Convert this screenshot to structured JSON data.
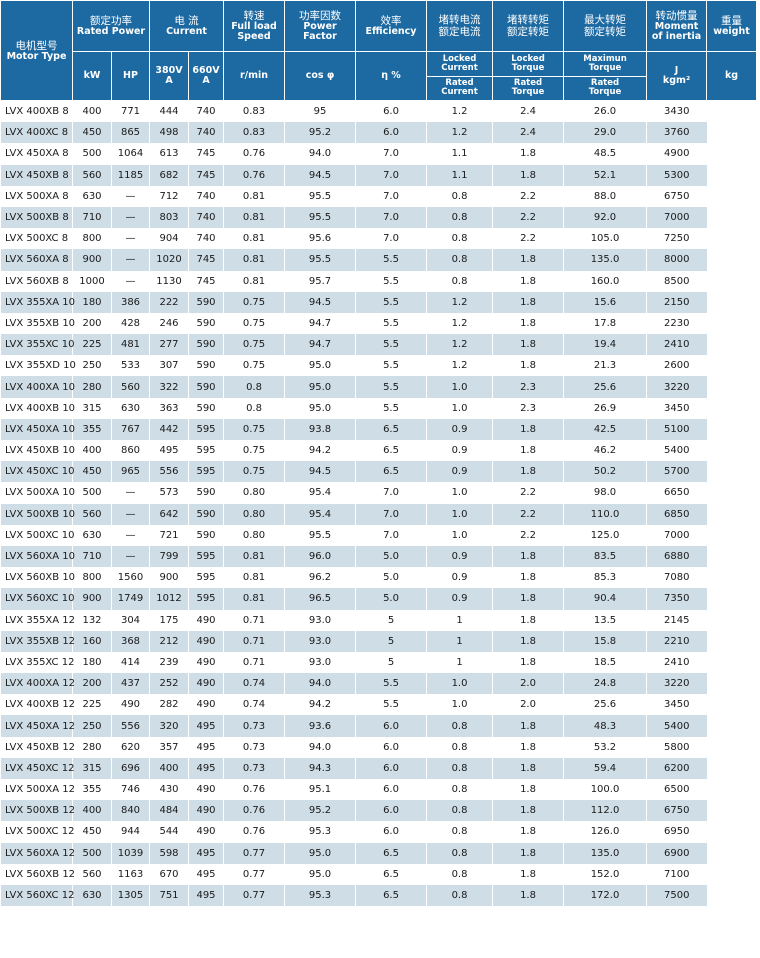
{
  "header": {
    "model": {
      "zh": "电机型号",
      "en": "Motor Type"
    },
    "power": {
      "zh": "额定功率",
      "en": "Rated Power",
      "kw": "kW",
      "hp": "HP"
    },
    "current": {
      "zh": "电 流",
      "en": "Current",
      "v380": "380V",
      "v660": "660V",
      "unit": "A"
    },
    "speed": {
      "zh": "转速",
      "en1": "Full load",
      "en2": "Speed",
      "unit": "r/min"
    },
    "pf": {
      "zh": "功率因数",
      "en1": "Power",
      "en2": "Factor",
      "unit": "cos φ"
    },
    "eff": {
      "zh": "效率",
      "en": "Efficiency",
      "unit": "η %"
    },
    "lcurrent": {
      "zh1": "堵转电流",
      "zh2": "额定电流",
      "t1": "Locked",
      "t2": "Current",
      "b1": "Rated",
      "b2": "Current"
    },
    "ltorque": {
      "zh1": "堵转转矩",
      "zh2": "额定转矩",
      "t1": "Locked",
      "t2": "Torque",
      "b1": "Rated",
      "b2": "Torque"
    },
    "mtorque": {
      "zh1": "最大转矩",
      "zh2": "额定转矩",
      "t1": "Maximun",
      "t2": "Torque",
      "b1": "Rated",
      "b2": "Torque"
    },
    "inertia": {
      "zh": "转动惯量",
      "en1": "Moment",
      "en2": "of inertia",
      "u1": "J",
      "u2": "kgm²"
    },
    "weight": {
      "zh": "重量",
      "en": "weight",
      "unit": "kg"
    }
  },
  "rows": [
    [
      "LVX 400XB 8",
      "400",
      "771",
      "444",
      "740",
      "0.83",
      "95",
      "6.0",
      "1.2",
      "2.4",
      "26.0",
      "3430"
    ],
    [
      "LVX 400XC 8",
      "450",
      "865",
      "498",
      "740",
      "0.83",
      "95.2",
      "6.0",
      "1.2",
      "2.4",
      "29.0",
      "3760"
    ],
    [
      "LVX 450XA 8",
      "500",
      "1064",
      "613",
      "745",
      "0.76",
      "94.0",
      "7.0",
      "1.1",
      "1.8",
      "48.5",
      "4900"
    ],
    [
      "LVX 450XB 8",
      "560",
      "1185",
      "682",
      "745",
      "0.76",
      "94.5",
      "7.0",
      "1.1",
      "1.8",
      "52.1",
      "5300"
    ],
    [
      "LVX 500XA 8",
      "630",
      "—",
      "712",
      "740",
      "0.81",
      "95.5",
      "7.0",
      "0.8",
      "2.2",
      "88.0",
      "6750"
    ],
    [
      "LVX 500XB 8",
      "710",
      "—",
      "803",
      "740",
      "0.81",
      "95.5",
      "7.0",
      "0.8",
      "2.2",
      "92.0",
      "7000"
    ],
    [
      "LVX 500XC 8",
      "800",
      "—",
      "904",
      "740",
      "0.81",
      "95.6",
      "7.0",
      "0.8",
      "2.2",
      "105.0",
      "7250"
    ],
    [
      "LVX 560XA 8",
      "900",
      "—",
      "1020",
      "745",
      "0.81",
      "95.5",
      "5.5",
      "0.8",
      "1.8",
      "135.0",
      "8000"
    ],
    [
      "LVX 560XB 8",
      "1000",
      "—",
      "1130",
      "745",
      "0.81",
      "95.7",
      "5.5",
      "0.8",
      "1.8",
      "160.0",
      "8500"
    ],
    [
      "LVX 355XA 10",
      "180",
      "386",
      "222",
      "590",
      "0.75",
      "94.5",
      "5.5",
      "1.2",
      "1.8",
      "15.6",
      "2150"
    ],
    [
      "LVX 355XB 10",
      "200",
      "428",
      "246",
      "590",
      "0.75",
      "94.7",
      "5.5",
      "1.2",
      "1.8",
      "17.8",
      "2230"
    ],
    [
      "LVX 355XC 10",
      "225",
      "481",
      "277",
      "590",
      "0.75",
      "94.7",
      "5.5",
      "1.2",
      "1.8",
      "19.4",
      "2410"
    ],
    [
      "LVX 355XD  10",
      "250",
      "533",
      "307",
      "590",
      "0.75",
      "95.0",
      "5.5",
      "1.2",
      "1.8",
      "21.3",
      "2600"
    ],
    [
      "LVX 400XA 10",
      "280",
      "560",
      "322",
      "590",
      "0.8",
      "95.0",
      "5.5",
      "1.0",
      "2.3",
      "25.6",
      "3220"
    ],
    [
      "LVX 400XB 10",
      "315",
      "630",
      "363",
      "590",
      "0.8",
      "95.0",
      "5.5",
      "1.0",
      "2.3",
      "26.9",
      "3450"
    ],
    [
      "LVX 450XA 10",
      "355",
      "767",
      "442",
      "595",
      "0.75",
      "93.8",
      "6.5",
      "0.9",
      "1.8",
      "42.5",
      "5100"
    ],
    [
      "LVX 450XB 10",
      "400",
      "860",
      "495",
      "595",
      "0.75",
      "94.2",
      "6.5",
      "0.9",
      "1.8",
      "46.2",
      "5400"
    ],
    [
      "LVX 450XC 10",
      "450",
      "965",
      "556",
      "595",
      "0.75",
      "94.5",
      "6.5",
      "0.9",
      "1.8",
      "50.2",
      "5700"
    ],
    [
      "LVX 500XA 10",
      "500",
      "—",
      "573",
      "590",
      "0.80",
      "95.4",
      "7.0",
      "1.0",
      "2.2",
      "98.0",
      "6650"
    ],
    [
      "LVX 500XB 10",
      "560",
      "—",
      "642",
      "590",
      "0.80",
      "95.4",
      "7.0",
      "1.0",
      "2.2",
      "110.0",
      "6850"
    ],
    [
      "LVX 500XC 10",
      "630",
      "—",
      "721",
      "590",
      "0.80",
      "95.5",
      "7.0",
      "1.0",
      "2.2",
      "125.0",
      "7000"
    ],
    [
      "LVX 560XA 10",
      "710",
      "—",
      "799",
      "595",
      "0.81",
      "96.0",
      "5.0",
      "0.9",
      "1.8",
      "83.5",
      "6880"
    ],
    [
      "LVX 560XB 10",
      "800",
      "1560",
      "900",
      "595",
      "0.81",
      "96.2",
      "5.0",
      "0.9",
      "1.8",
      "85.3",
      "7080"
    ],
    [
      "LVX 560XC 10",
      "900",
      "1749",
      "1012",
      "595",
      "0.81",
      "96.5",
      "5.0",
      "0.9",
      "1.8",
      "90.4",
      "7350"
    ],
    [
      "LVX 355XA 12",
      "132",
      "304",
      "175",
      "490",
      "0.71",
      "93.0",
      "5",
      "1",
      "1.8",
      "13.5",
      "2145"
    ],
    [
      "LVX 355XB 12",
      "160",
      "368",
      "212",
      "490",
      "0.71",
      "93.0",
      "5",
      "1",
      "1.8",
      "15.8",
      "2210"
    ],
    [
      "LVX 355XC 12",
      "180",
      "414",
      "239",
      "490",
      "0.71",
      "93.0",
      "5",
      "1",
      "1.8",
      "18.5",
      "2410"
    ],
    [
      "LVX 400XA 12",
      "200",
      "437",
      "252",
      "490",
      "0.74",
      "94.0",
      "5.5",
      "1.0",
      "2.0",
      "24.8",
      "3220"
    ],
    [
      "LVX 400XB 12",
      "225",
      "490",
      "282",
      "490",
      "0.74",
      "94.2",
      "5.5",
      "1.0",
      "2.0",
      "25.6",
      "3450"
    ],
    [
      "LVX 450XA 12",
      "250",
      "556",
      "320",
      "495",
      "0.73",
      "93.6",
      "6.0",
      "0.8",
      "1.8",
      "48.3",
      "5400"
    ],
    [
      "LVX 450XB 12",
      "280",
      "620",
      "357",
      "495",
      "0.73",
      "94.0",
      "6.0",
      "0.8",
      "1.8",
      "53.2",
      "5800"
    ],
    [
      "LVX 450XC 12",
      "315",
      "696",
      "400",
      "495",
      "0.73",
      "94.3",
      "6.0",
      "0.8",
      "1.8",
      "59.4",
      "6200"
    ],
    [
      "LVX 500XA 12",
      "355",
      "746",
      "430",
      "490",
      "0.76",
      "95.1",
      "6.0",
      "0.8",
      "1.8",
      "100.0",
      "6500"
    ],
    [
      "LVX 500XB 12",
      "400",
      "840",
      "484",
      "490",
      "0.76",
      "95.2",
      "6.0",
      "0.8",
      "1.8",
      "112.0",
      "6750"
    ],
    [
      "LVX 500XC 12",
      "450",
      "944",
      "544",
      "490",
      "0.76",
      "95.3",
      "6.0",
      "0.8",
      "1.8",
      "126.0",
      "6950"
    ],
    [
      "LVX 560XA 12",
      "500",
      "1039",
      "598",
      "495",
      "0.77",
      "95.0",
      "6.5",
      "0.8",
      "1.8",
      "135.0",
      "6900"
    ],
    [
      "LVX 560XB 12",
      "560",
      "1163",
      "670",
      "495",
      "0.77",
      "95.0",
      "6.5",
      "0.8",
      "1.8",
      "152.0",
      "7100"
    ],
    [
      "LVX 560XC 12",
      "630",
      "1305",
      "751",
      "495",
      "0.77",
      "95.3",
      "6.5",
      "0.8",
      "1.8",
      "172.0",
      "7500"
    ]
  ]
}
